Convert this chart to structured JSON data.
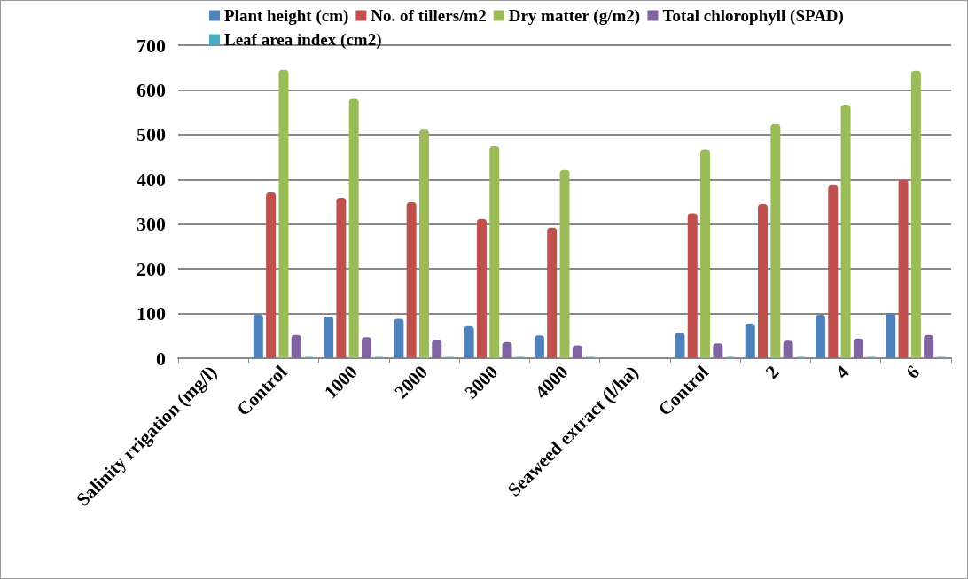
{
  "chart_data": {
    "type": "bar",
    "categories": [
      "Salinity rrigation (mg/l)",
      "Control",
      "1000",
      "2000",
      "3000",
      "4000",
      "Seaweed extract (l/ha)",
      "Control",
      "2",
      "4",
      "6"
    ],
    "series": [
      {
        "name": "Plant height (cm)",
        "color": "#4f81bd",
        "values": [
          null,
          98,
          93,
          88,
          72,
          51,
          null,
          57,
          78,
          97,
          101
        ]
      },
      {
        "name": "No. of tillers/m2",
        "color": "#c0504d",
        "values": [
          null,
          371,
          359,
          349,
          312,
          292,
          null,
          324,
          345,
          387,
          400
        ]
      },
      {
        "name": "Dry matter (g/m2)",
        "color": "#9bbb59",
        "values": [
          null,
          645,
          580,
          511,
          474,
          421,
          null,
          467,
          524,
          567,
          643
        ]
      },
      {
        "name": "Total chlorophyll (SPAD)",
        "color": "#8064a2",
        "values": [
          null,
          52,
          47,
          41,
          36,
          29,
          null,
          33,
          39,
          44,
          52
        ]
      },
      {
        "name": "Leaf area index (cm2)",
        "color": "#4bacc6",
        "values": [
          null,
          3,
          3,
          3,
          3,
          3,
          null,
          3,
          3,
          3,
          3
        ]
      }
    ],
    "ylim": [
      0,
      700
    ],
    "yticks": [
      0,
      100,
      200,
      300,
      400,
      500,
      600,
      700
    ],
    "grid": "y",
    "legend": "top"
  }
}
